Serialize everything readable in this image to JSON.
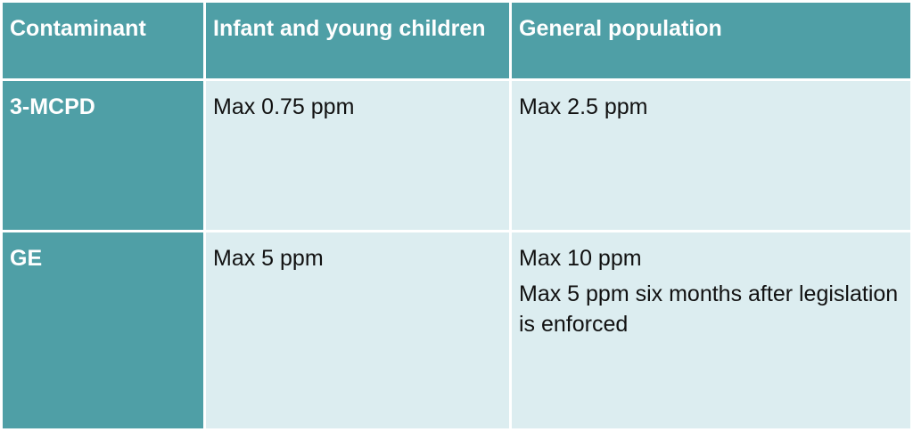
{
  "colors": {
    "header_bg": "#4f9fa6",
    "cell_bg": "#dcedf0",
    "header_text": "#ffffff",
    "body_text": "#111111"
  },
  "table": {
    "headers": [
      "Contaminant",
      "Infant and young children",
      "General population"
    ],
    "rows": [
      {
        "contaminant": "3-MCPD",
        "infant": [
          "Max 0.75 ppm"
        ],
        "general": [
          "Max 2.5 ppm"
        ]
      },
      {
        "contaminant": "GE",
        "infant": [
          "Max 5 ppm"
        ],
        "general": [
          "Max 10 ppm",
          "Max 5 ppm six months after legislation is enforced"
        ]
      }
    ]
  }
}
